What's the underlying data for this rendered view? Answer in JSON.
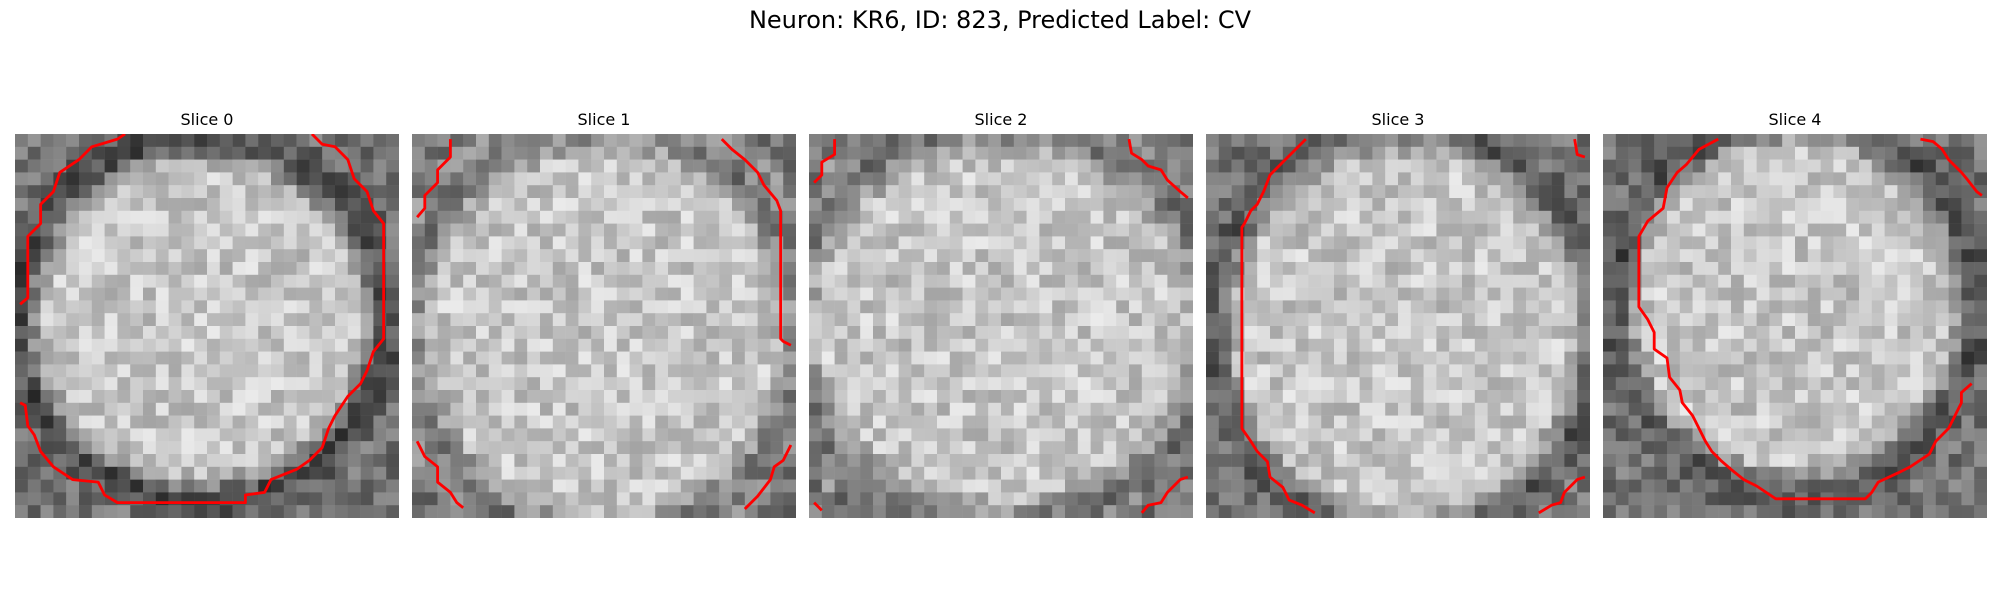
{
  "figure": {
    "title": "Neuron: KR6, ID: 823, Predicted Label: CV"
  },
  "panels": [
    {
      "title": "Slice 0"
    },
    {
      "title": "Slice 1"
    },
    {
      "title": "Slice 2"
    },
    {
      "title": "Slice 3"
    },
    {
      "title": "Slice 4"
    }
  ],
  "colors": {
    "contour": "#ff0000",
    "background": "#ffffff"
  }
}
